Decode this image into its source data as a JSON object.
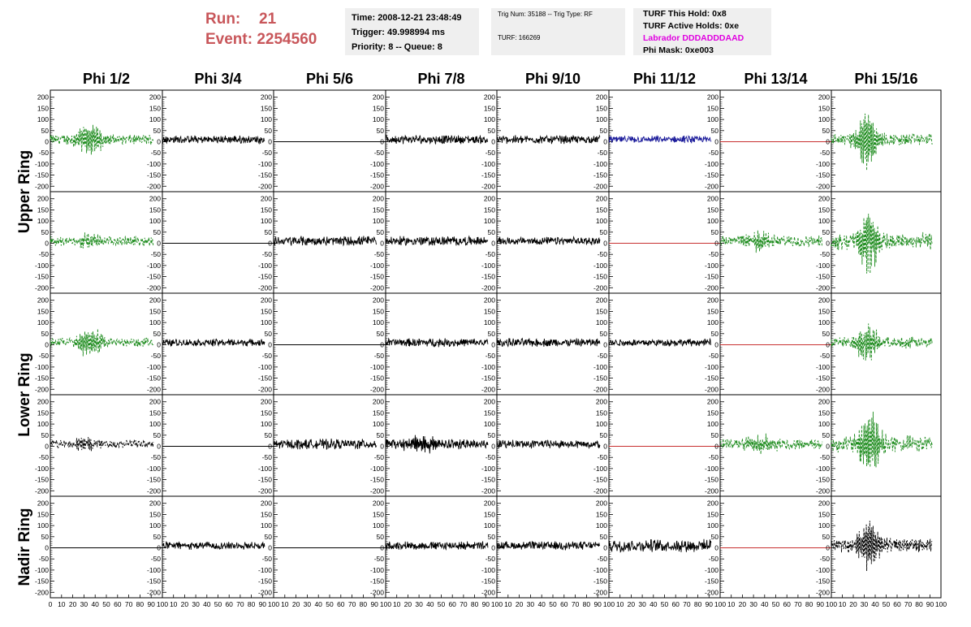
{
  "header": {
    "run_label": "Run:",
    "run_value": "21",
    "event_label": "Event:",
    "event_value": "2254560",
    "time": "Time: 2008-12-21 23:48:49",
    "trigger": "Trigger: 49.998994 ms",
    "priority": "Priority: 8 -- Queue: 8",
    "trig_num": "Trig Num: 35188 -- Trig Type: RF",
    "turf": "TURF: 166269",
    "turf_hold": "TURF This Hold: 0x8",
    "turf_active": "TURF Active Holds: 0xe",
    "labrador": "Labrador DDDADDDAAD",
    "phi_mask": "Phi Mask: 0xe003"
  },
  "chart_data": {
    "type": "line",
    "columns": [
      "Phi 1/2",
      "Phi 3/4",
      "Phi 5/6",
      "Phi 7/8",
      "Phi 9/10",
      "Phi 11/12",
      "Phi 13/14",
      "Phi 15/16"
    ],
    "rows": [
      "Upper Ring",
      "Upper Ring",
      "Lower Ring",
      "Lower Ring",
      "Nadir Ring"
    ],
    "row_labels": [
      {
        "text": "Upper Ring",
        "span": [
          0,
          1
        ]
      },
      {
        "text": "Lower Ring",
        "span": [
          2,
          3
        ]
      },
      {
        "text": "Nadir Ring",
        "span": [
          4,
          4
        ]
      }
    ],
    "x_range": [
      0,
      100
    ],
    "y_range": [
      -210,
      210
    ],
    "y_ticks": [
      -200,
      -150,
      -100,
      -50,
      0,
      50,
      100,
      150,
      200
    ],
    "y_tick_labels": [
      "-200",
      "-150",
      "-100",
      "-50",
      "0",
      "50",
      "100",
      "150",
      "200"
    ],
    "x_tick_labels": [
      "0",
      "10",
      "20",
      "30",
      "40",
      "50",
      "60",
      "70",
      "80",
      "90",
      "100"
    ],
    "colors": {
      "green": "#1a8a1a",
      "black": "#000000",
      "blue": "#1a1a9a",
      "red": "#c83030"
    },
    "series_grid": [
      [
        {
          "color": "green",
          "dash": true,
          "amp": 18,
          "burst": [
            35,
            70,
            12
          ]
        },
        {
          "color": "black",
          "dash": false,
          "amp": 14,
          "burst": null
        },
        {
          "color": "black",
          "dash": false,
          "amp": 0,
          "burst": null
        },
        {
          "color": "black",
          "dash": false,
          "amp": 16,
          "burst": null
        },
        {
          "color": "black",
          "dash": false,
          "amp": 15,
          "burst": null
        },
        {
          "color": "blue",
          "dash": false,
          "amp": 13,
          "burst": null
        },
        {
          "color": "red",
          "dash": false,
          "amp": 0,
          "burst": null
        },
        {
          "color": "green",
          "dash": true,
          "amp": 22,
          "burst": [
            32,
            140,
            10
          ]
        }
      ],
      [
        {
          "color": "green",
          "dash": true,
          "amp": 17,
          "burst": [
            35,
            35,
            10
          ]
        },
        {
          "color": "black",
          "dash": false,
          "amp": 0,
          "burst": null
        },
        {
          "color": "black",
          "dash": false,
          "amp": 18,
          "burst": null
        },
        {
          "color": "black",
          "dash": false,
          "amp": 17,
          "burst": null
        },
        {
          "color": "black",
          "dash": false,
          "amp": 14,
          "burst": null
        },
        {
          "color": "red",
          "dash": false,
          "amp": 0,
          "burst": null
        },
        {
          "color": "green",
          "dash": true,
          "amp": 20,
          "burst": [
            35,
            45,
            12
          ]
        },
        {
          "color": "green",
          "dash": true,
          "amp": 30,
          "burst": [
            34,
            150,
            10
          ]
        }
      ],
      [
        {
          "color": "green",
          "dash": true,
          "amp": 16,
          "burst": [
            35,
            75,
            12
          ]
        },
        {
          "color": "black",
          "dash": false,
          "amp": 13,
          "burst": null
        },
        {
          "color": "black",
          "dash": false,
          "amp": 0,
          "burst": null
        },
        {
          "color": "black",
          "dash": false,
          "amp": 15,
          "burst": null
        },
        {
          "color": "black",
          "dash": false,
          "amp": 15,
          "burst": null
        },
        {
          "color": "black",
          "dash": false,
          "amp": 13,
          "burst": null
        },
        {
          "color": "red",
          "dash": false,
          "amp": 0,
          "burst": null
        },
        {
          "color": "green",
          "dash": true,
          "amp": 20,
          "burst": [
            32,
            90,
            10
          ]
        }
      ],
      [
        {
          "color": "black",
          "dash": true,
          "amp": 15,
          "burst": [
            30,
            30,
            10
          ]
        },
        {
          "color": "black",
          "dash": false,
          "amp": 0,
          "burst": null
        },
        {
          "color": "black",
          "dash": false,
          "amp": 18,
          "burst": null
        },
        {
          "color": "black",
          "dash": false,
          "amp": 18,
          "burst": [
            35,
            35,
            15
          ]
        },
        {
          "color": "black",
          "dash": false,
          "amp": 15,
          "burst": null
        },
        {
          "color": "red",
          "dash": false,
          "amp": 0,
          "burst": null
        },
        {
          "color": "green",
          "dash": true,
          "amp": 18,
          "burst": [
            35,
            40,
            15
          ]
        },
        {
          "color": "green",
          "dash": true,
          "amp": 30,
          "burst": [
            35,
            150,
            10
          ]
        }
      ],
      [
        {
          "color": "black",
          "dash": false,
          "amp": 0,
          "burst": null
        },
        {
          "color": "black",
          "dash": false,
          "amp": 14,
          "burst": null
        },
        {
          "color": "black",
          "dash": false,
          "amp": 0,
          "burst": null
        },
        {
          "color": "black",
          "dash": false,
          "amp": 15,
          "burst": null
        },
        {
          "color": "black",
          "dash": false,
          "amp": 15,
          "burst": null
        },
        {
          "color": "black",
          "dash": false,
          "amp": 22,
          "burst": null
        },
        {
          "color": "red",
          "dash": false,
          "amp": 0,
          "burst": null
        },
        {
          "color": "black",
          "dash": true,
          "amp": 25,
          "burst": [
            35,
            110,
            12
          ]
        }
      ]
    ]
  }
}
